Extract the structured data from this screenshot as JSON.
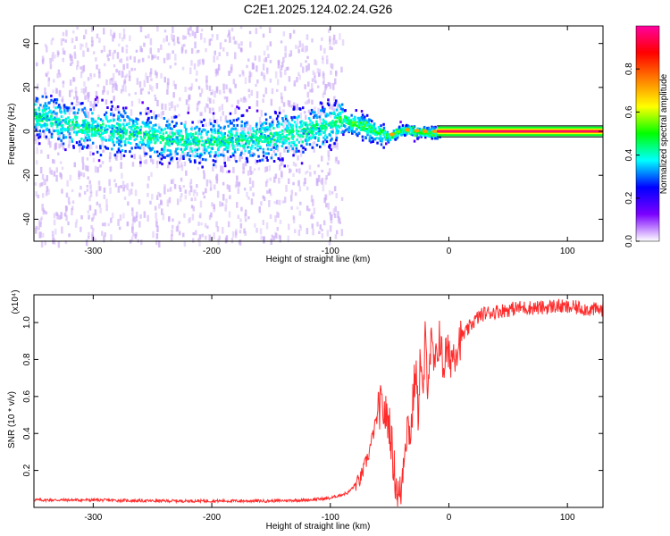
{
  "figure_title": "C2E1.2025.124.02.24.G26",
  "chart_data": [
    {
      "type": "heatmap",
      "title": "",
      "xlabel": "Height of straight line (km)",
      "ylabel": "Frequency (Hz)",
      "xlim": [
        -350,
        130
      ],
      "ylim": [
        -50,
        48
      ],
      "x_ticks": [
        -300,
        -200,
        -100,
        0,
        100
      ],
      "x_tick_labels": [
        "-300",
        "-200",
        "-100",
        "0",
        "100"
      ],
      "y_ticks": [
        -40,
        -20,
        0,
        20,
        40
      ],
      "y_tick_labels": [
        "-40",
        "-20",
        "0",
        "20",
        "40"
      ],
      "colorbar": {
        "label": "Normalized spectral amplitude",
        "range": [
          0,
          1
        ],
        "ticks": [
          0,
          0.2,
          0.4,
          0.6,
          0.8
        ],
        "tick_labels": [
          "0.0",
          "0.2",
          "0.4",
          "0.6",
          "0.8"
        ],
        "colormap": [
          "#ffffff",
          "#7b00ff",
          "#0000ff",
          "#00ffff",
          "#00ff00",
          "#ffff00",
          "#ff8000",
          "#ff0000",
          "#ff00a0"
        ]
      },
      "ridge": {
        "x": [
          -350,
          -330,
          -300,
          -270,
          -240,
          -210,
          -180,
          -150,
          -120,
          -100,
          -90,
          -70,
          -60,
          -50,
          -40,
          -30,
          -20,
          -10,
          0,
          130
        ],
        "frequency": [
          8,
          5,
          2,
          0,
          -3,
          -4,
          -3,
          -2,
          1,
          4,
          6,
          2,
          0,
          -2,
          1,
          0.5,
          0,
          0,
          0,
          0
        ]
      },
      "tone": {
        "x_start": -10,
        "x_end": 130,
        "frequency": 0
      }
    },
    {
      "type": "line",
      "title": "",
      "xlabel": "Height of straight line (km)",
      "ylabel": "SNR (10 * v/v)",
      "y_scale_label": "(x10⁴)",
      "xlim": [
        -350,
        130
      ],
      "ylim": [
        0,
        1.15
      ],
      "x_ticks": [
        -300,
        -200,
        -100,
        0,
        100
      ],
      "x_tick_labels": [
        "-300",
        "-200",
        "-100",
        "0",
        "100"
      ],
      "y_ticks": [
        0.2,
        0.4,
        0.6,
        0.8,
        1.0
      ],
      "y_tick_labels": [
        "0.2",
        "0.4",
        "0.6",
        "0.8",
        "1.0"
      ],
      "color": "#ff2a2a",
      "series": [
        {
          "x": [
            -350,
            -300,
            -250,
            -200,
            -150,
            -120,
            -100,
            -85,
            -75,
            -68,
            -62,
            -58,
            -55,
            -50,
            -47,
            -44,
            -42,
            -40,
            -38,
            -35,
            -32,
            -30,
            -28,
            -26,
            -24,
            -22,
            -20,
            -18,
            -15,
            -12,
            -10,
            -8,
            -5,
            -2,
            0,
            5,
            10,
            15,
            20,
            25,
            30,
            40,
            50,
            60,
            70,
            80,
            90,
            100,
            110,
            120,
            130
          ],
          "values": [
            0.04,
            0.04,
            0.035,
            0.035,
            0.035,
            0.04,
            0.05,
            0.08,
            0.15,
            0.28,
            0.45,
            0.55,
            0.52,
            0.45,
            0.25,
            0.1,
            0.05,
            0.1,
            0.3,
            0.45,
            0.4,
            0.6,
            0.75,
            0.5,
            0.85,
            0.55,
            0.9,
            0.7,
            0.88,
            0.75,
            0.8,
            0.95,
            0.75,
            0.85,
            0.8,
            0.85,
            0.92,
            0.95,
            1.0,
            1.03,
            1.05,
            1.06,
            1.07,
            1.08,
            1.08,
            1.08,
            1.09,
            1.08,
            1.08,
            1.07,
            1.07
          ]
        }
      ]
    }
  ]
}
